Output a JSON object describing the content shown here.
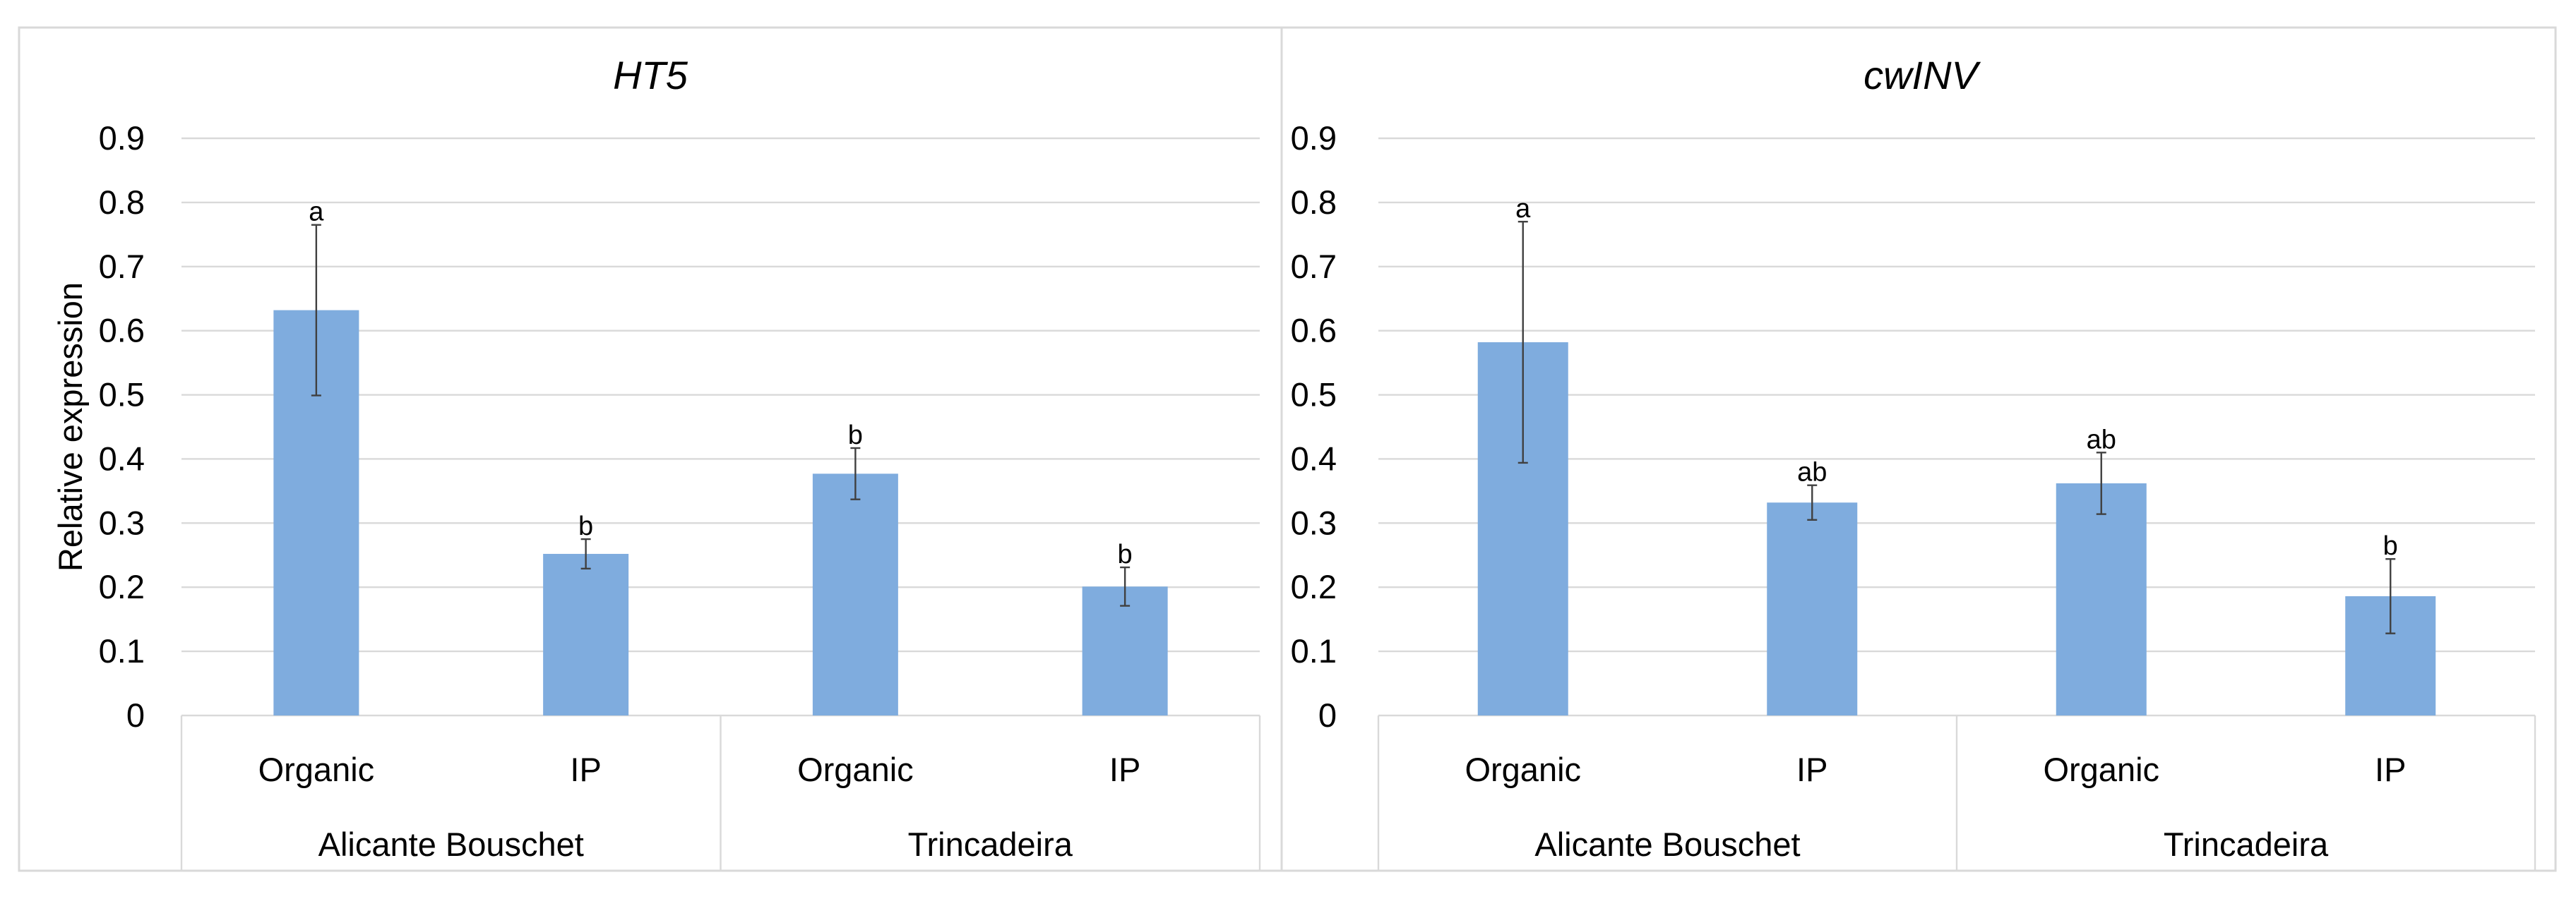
{
  "chart_data": [
    {
      "type": "bar",
      "title": "HT5",
      "ylabel": "Relative expression",
      "xlabel": "",
      "ylim": [
        0,
        0.9
      ],
      "yticks": [
        0,
        0.1,
        0.2,
        0.3,
        0.4,
        0.5,
        0.6,
        0.7,
        0.8,
        0.9
      ],
      "categories": [
        "Organic",
        "IP",
        "Organic",
        "IP"
      ],
      "groups": [
        {
          "label": "Alicante Bouschet",
          "count": 2
        },
        {
          "label": "Trincadeira",
          "count": 2
        }
      ],
      "values": [
        0.632,
        0.252,
        0.377,
        0.201
      ],
      "errors": [
        0.133,
        0.023,
        0.04,
        0.03
      ],
      "significance": [
        "a",
        "b",
        "b",
        "b"
      ],
      "color": "#7facde",
      "grid": true,
      "legend": "none"
    },
    {
      "type": "bar",
      "title": "cwINV",
      "ylabel": "",
      "xlabel": "",
      "ylim": [
        0,
        0.9
      ],
      "yticks": [
        0,
        0.1,
        0.2,
        0.3,
        0.4,
        0.5,
        0.6,
        0.7,
        0.8,
        0.9
      ],
      "categories": [
        "Organic",
        "IP",
        "Organic",
        "IP"
      ],
      "groups": [
        {
          "label": "Alicante Bouschet",
          "count": 2
        },
        {
          "label": "Trincadeira",
          "count": 2
        }
      ],
      "values": [
        0.582,
        0.332,
        0.362,
        0.186
      ],
      "errors": [
        0.188,
        0.027,
        0.048,
        0.058
      ],
      "significance": [
        "a",
        "ab",
        "ab",
        "b"
      ],
      "color": "#7facde",
      "grid": true,
      "legend": "none"
    }
  ]
}
